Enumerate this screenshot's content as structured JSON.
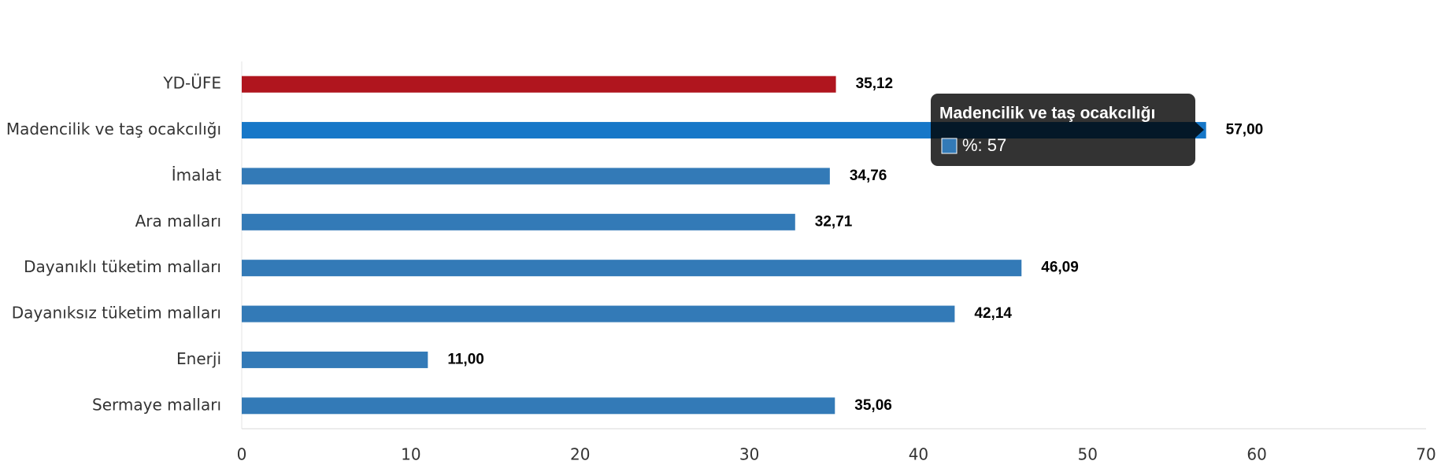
{
  "chart_data": {
    "type": "bar",
    "orientation": "horizontal",
    "categories": [
      "YD-ÜFE",
      "Madencilik ve taş ocakcılığı",
      "İmalat",
      "Ara malları",
      "Dayanıklı tüketim malları",
      "Dayanıksız tüketim malları",
      "Enerji",
      "Sermaye malları"
    ],
    "values": [
      35.12,
      57.0,
      34.76,
      32.71,
      46.09,
      42.14,
      11.0,
      35.06
    ],
    "value_labels": [
      "35,12",
      "57,00",
      "34,76",
      "32,71",
      "46,09",
      "42,14",
      "11,00",
      "35,06"
    ],
    "colors": [
      "#b0151e",
      "#1677c8",
      "#337ab7",
      "#337ab7",
      "#337ab7",
      "#337ab7",
      "#337ab7",
      "#337ab7"
    ],
    "xlim": [
      0,
      70
    ],
    "xticks": [
      0,
      10,
      20,
      30,
      40,
      50,
      60,
      70
    ],
    "grid": false,
    "tooltip": {
      "title": "Madencilik ve taş ocakcılığı",
      "text": "%: 57",
      "color": "#337ab7"
    }
  }
}
